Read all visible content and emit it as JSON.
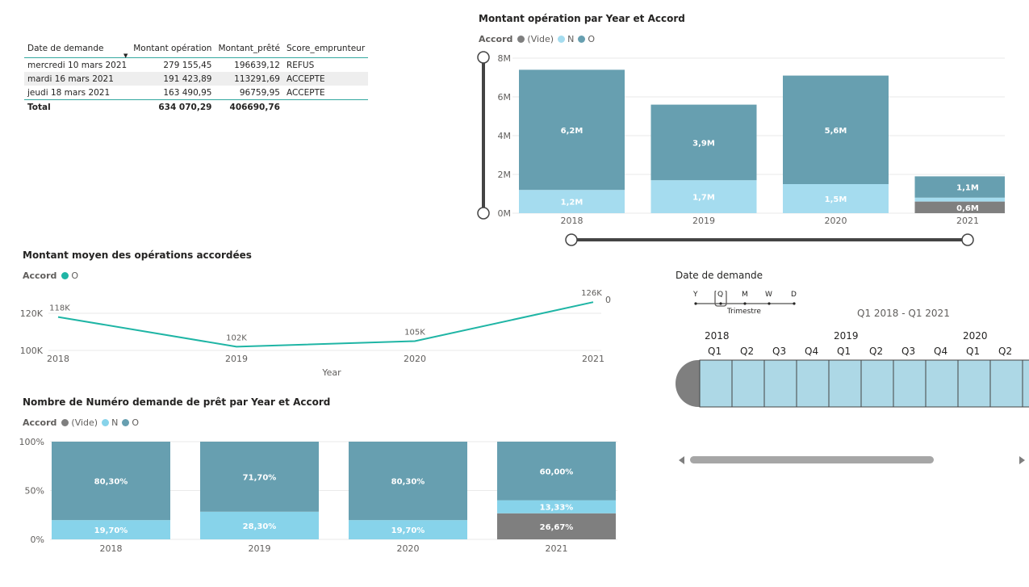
{
  "table": {
    "columns": [
      "Date de demande",
      "Montant opération",
      "Montant_prêté",
      "Score_emprunteur"
    ],
    "rows": [
      [
        "mercredi 10 mars 2021",
        "279 155,45",
        "196639,12",
        "REFUS"
      ],
      [
        "mardi 16 mars 2021",
        "191 423,89",
        "113291,69",
        "ACCEPTE"
      ],
      [
        "jeudi 18 mars 2021",
        "163 490,95",
        "96759,95",
        "ACCEPTE"
      ]
    ],
    "total": [
      "Total",
      "634 070,29",
      "406690,76",
      ""
    ]
  },
  "chart1": {
    "title": "Montant opération par Year et Accord",
    "legend_title": "Accord",
    "legend": [
      {
        "label": "(Vide)",
        "color": "#7f7f7f"
      },
      {
        "label": "N",
        "color": "#a5dcef"
      },
      {
        "label": "O",
        "color": "#679fb0"
      }
    ]
  },
  "chart2": {
    "title": "Montant moyen des opérations accordées",
    "legend_title": "Accord",
    "legend": [
      {
        "label": "O",
        "color": "#1fb5a5"
      }
    ],
    "extra_label": "0"
  },
  "chart3": {
    "title": "Nombre de Numéro demande de prêt par Year et Accord",
    "legend_title": "Accord",
    "legend": [
      {
        "label": "(Vide)",
        "color": "#7f7f7f"
      },
      {
        "label": "N",
        "color": "#87d3ea"
      },
      {
        "label": "O",
        "color": "#679fb0"
      }
    ]
  },
  "slicer": {
    "title": "Date de demande",
    "granularity": [
      "Y",
      "Q",
      "M",
      "W",
      "D"
    ],
    "selected_granularity": "Trimestre",
    "range_label": "Q1 2018 - Q1 2021",
    "years": [
      "2018",
      "2019",
      "2020"
    ],
    "quarters": [
      "Q1",
      "Q2",
      "Q3",
      "Q4",
      "Q1",
      "Q2",
      "Q3",
      "Q4",
      "Q1",
      "Q2"
    ]
  },
  "chart_data": [
    {
      "type": "bar",
      "stacked": true,
      "title": "Montant opération par Year et Accord",
      "categories": [
        "2018",
        "2019",
        "2020",
        "2021"
      ],
      "series": [
        {
          "name": "(Vide)",
          "values": [
            0,
            0,
            0,
            0.6
          ],
          "labels": [
            "",
            "",
            "",
            "0,6M"
          ]
        },
        {
          "name": "N",
          "values": [
            1.2,
            1.7,
            1.5,
            0.2
          ],
          "labels": [
            "1,2M",
            "1,7M",
            "1,5M",
            ""
          ]
        },
        {
          "name": "O",
          "values": [
            6.2,
            3.9,
            5.6,
            1.1
          ],
          "labels": [
            "6,2M",
            "3,9M",
            "5,6M",
            "1,1M"
          ]
        }
      ],
      "yticks": [
        "0M",
        "2M",
        "4M",
        "6M",
        "8M"
      ],
      "ylim": [
        0,
        8
      ],
      "unit": "M"
    },
    {
      "type": "line",
      "title": "Montant moyen des opérations accordées",
      "xlabel": "Year",
      "categories": [
        "2018",
        "2019",
        "2020",
        "2021"
      ],
      "series": [
        {
          "name": "O",
          "values": [
            118,
            102,
            105,
            126
          ],
          "labels": [
            "118K",
            "102K",
            "105K",
            "126K"
          ]
        }
      ],
      "yticks": [
        "100K",
        "120K"
      ],
      "ytick_values": [
        100,
        120
      ],
      "ylim": [
        98,
        130
      ],
      "unit": "K"
    },
    {
      "type": "bar",
      "stacked": true,
      "percent": true,
      "title": "Nombre de Numéro demande de prêt par Year et Accord",
      "categories": [
        "2018",
        "2019",
        "2020",
        "2021"
      ],
      "series": [
        {
          "name": "(Vide)",
          "values": [
            0,
            0,
            0,
            26.67
          ],
          "labels": [
            "",
            "",
            "",
            "26,67%"
          ]
        },
        {
          "name": "N",
          "values": [
            19.7,
            28.3,
            19.7,
            13.33
          ],
          "labels": [
            "19,70%",
            "28,30%",
            "19,70%",
            "13,33%"
          ]
        },
        {
          "name": "O",
          "values": [
            80.3,
            71.7,
            80.3,
            60.0
          ],
          "labels": [
            "80,30%",
            "71,70%",
            "80,30%",
            "60,00%"
          ]
        }
      ],
      "yticks": [
        "0%",
        "50%",
        "100%"
      ],
      "ylim": [
        0,
        100
      ]
    }
  ]
}
